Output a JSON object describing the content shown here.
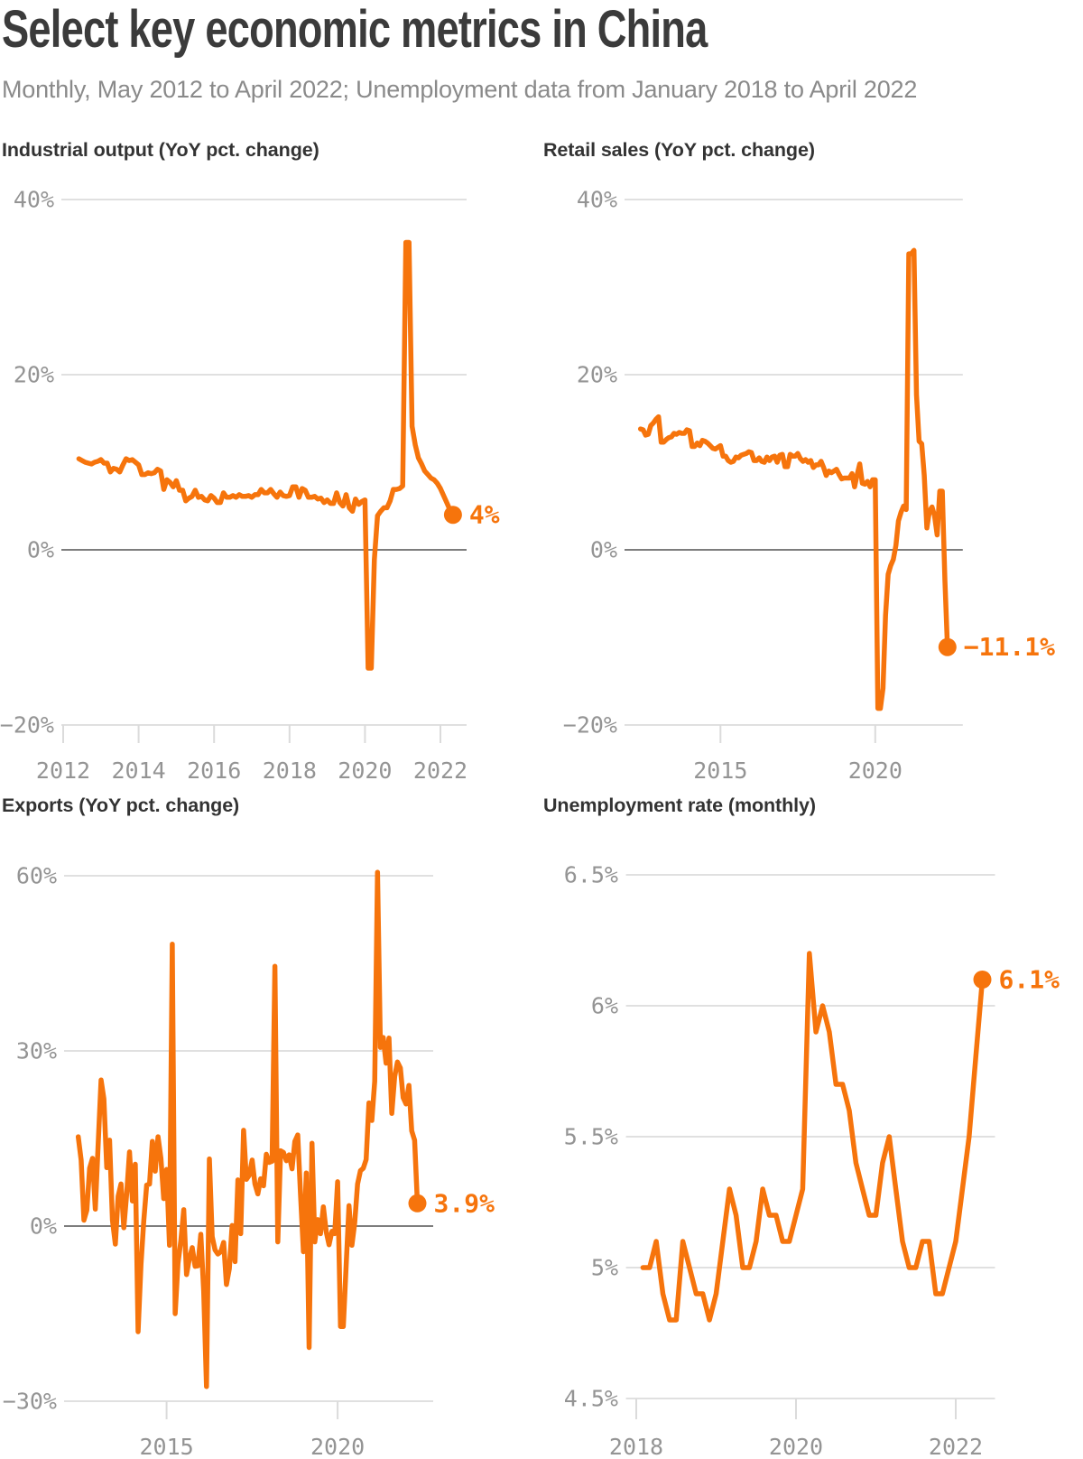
{
  "page": {
    "title": "Select key economic metrics in China",
    "subtitle": "Monthly, May 2012 to April 2022; Unemployment data from January 2018 to April 2022"
  },
  "colors": {
    "accent_orange": "#F6740C",
    "grid_line": "#E0E0E0",
    "zero_line": "#7D7D7D",
    "axis_tick_mark": "#DBDBDB",
    "tick_label": "#949494",
    "heading": "#3B3B3B",
    "subtitle_gray": "#8A8A8A",
    "chart_title_gray": "#333333",
    "background": "#FFFFFF"
  },
  "chart_data": [
    {
      "type": "line",
      "title": "Industrial output (YoY pct. change)",
      "unit": "percent",
      "start": {
        "year": 2012,
        "month": 5
      },
      "frequency": "monthly",
      "end_label": "4%",
      "y_axis": {
        "min": -20,
        "max": 40,
        "zero_line": true,
        "ticks": [
          {
            "value": 40,
            "label": "40%"
          },
          {
            "value": 20,
            "label": "20%"
          },
          {
            "value": 0,
            "label": "0%"
          },
          {
            "value": -20,
            "label": "−20%"
          }
        ]
      },
      "x_axis": {
        "min": 2012,
        "max": 2022.7,
        "ticks": [
          {
            "value": 2012,
            "label": "2012"
          },
          {
            "value": 2014,
            "label": "2014"
          },
          {
            "value": 2016,
            "label": "2016"
          },
          {
            "value": 2018,
            "label": "2018"
          },
          {
            "value": 2020,
            "label": "2020"
          },
          {
            "value": 2022,
            "label": "2022"
          }
        ]
      },
      "values": [
        10.4,
        10.2,
        10.0,
        9.9,
        9.8,
        10.0,
        10.1,
        10.3,
        9.9,
        9.9,
        8.9,
        9.3,
        9.2,
        8.9,
        9.7,
        10.4,
        10.2,
        10.3,
        10.0,
        9.7,
        8.6,
        8.6,
        8.8,
        8.7,
        8.8,
        9.2,
        9.0,
        6.9,
        8.0,
        7.7,
        7.2,
        7.9,
        6.8,
        6.8,
        5.6,
        5.9,
        6.1,
        6.8,
        6.0,
        6.1,
        5.7,
        5.6,
        6.2,
        5.9,
        5.4,
        5.4,
        6.5,
        6.0,
        6.0,
        6.2,
        6.0,
        6.3,
        6.1,
        6.1,
        6.2,
        6.0,
        6.3,
        6.3,
        6.9,
        6.5,
        6.5,
        6.9,
        6.4,
        6.0,
        6.6,
        6.2,
        6.1,
        6.2,
        7.2,
        7.2,
        6.0,
        7.0,
        6.8,
        6.0,
        6.0,
        6.1,
        5.8,
        5.9,
        5.4,
        5.7,
        5.3,
        5.3,
        6.5,
        5.4,
        5.0,
        6.3,
        4.8,
        4.4,
        5.8,
        5.2,
        5.5,
        5.7,
        -13.5,
        -13.5,
        -1.1,
        3.9,
        4.4,
        4.8,
        4.8,
        5.6,
        6.9,
        6.9,
        7.0,
        7.3,
        35.1,
        35.1,
        14.1,
        12.0,
        10.5,
        9.8,
        9.0,
        8.6,
        8.2,
        8.0,
        7.6,
        7.0,
        6.2,
        5.4,
        4.6,
        4.0
      ]
    },
    {
      "type": "line",
      "title": "Retail sales (YoY pct. change)",
      "unit": "percent",
      "start": {
        "year": 2012,
        "month": 5
      },
      "frequency": "monthly",
      "end_label": "−11.1%",
      "y_axis": {
        "min": -20,
        "max": 40,
        "zero_line": true,
        "ticks": [
          {
            "value": 40,
            "label": "40%"
          },
          {
            "value": 20,
            "label": "20%"
          },
          {
            "value": 0,
            "label": "0%"
          },
          {
            "value": -20,
            "label": "−20%"
          }
        ]
      },
      "x_axis": {
        "min": 2012,
        "max": 2022.8,
        "ticks": [
          {
            "value": 2015,
            "label": "2015"
          },
          {
            "value": 2020,
            "label": "2020"
          }
        ]
      },
      "values": [
        13.8,
        13.7,
        13.1,
        13.2,
        14.2,
        14.5,
        14.9,
        15.2,
        12.3,
        12.3,
        12.6,
        12.8,
        12.9,
        13.3,
        13.2,
        13.4,
        13.3,
        13.3,
        13.7,
        13.6,
        11.8,
        11.8,
        12.2,
        11.9,
        12.5,
        12.4,
        12.2,
        11.9,
        11.6,
        11.5,
        11.7,
        11.9,
        10.7,
        10.7,
        10.2,
        10.0,
        10.1,
        10.6,
        10.5,
        10.8,
        10.9,
        11.0,
        11.2,
        11.1,
        10.2,
        10.2,
        10.5,
        10.1,
        10.0,
        10.6,
        10.2,
        10.6,
        10.7,
        10.0,
        10.8,
        10.9,
        9.5,
        9.5,
        10.9,
        10.7,
        10.7,
        11.0,
        10.4,
        10.1,
        10.3,
        10.0,
        10.2,
        9.4,
        9.7,
        9.7,
        10.1,
        9.4,
        8.5,
        9.0,
        8.8,
        9.0,
        9.2,
        8.6,
        8.1,
        8.2,
        8.2,
        8.2,
        8.7,
        7.2,
        8.6,
        9.8,
        7.6,
        7.5,
        7.8,
        7.2,
        8.0,
        8.0,
        -18.1,
        -18.1,
        -15.8,
        -7.5,
        -2.8,
        -1.8,
        -1.1,
        0.5,
        3.3,
        4.3,
        5.0,
        4.6,
        33.8,
        33.8,
        34.2,
        17.7,
        12.4,
        12.1,
        8.5,
        2.5,
        4.4,
        4.9,
        3.9,
        1.7,
        6.7,
        6.7,
        -3.5,
        -11.1
      ]
    },
    {
      "type": "line",
      "title": "Exports (YoY pct. change)",
      "unit": "percent",
      "start": {
        "year": 2012,
        "month": 5
      },
      "frequency": "monthly",
      "end_label": "3.9%",
      "y_axis": {
        "min": -30,
        "max": 60,
        "zero_line": true,
        "ticks": [
          {
            "value": 60,
            "label": "60%"
          },
          {
            "value": 30,
            "label": "30%"
          },
          {
            "value": 0,
            "label": "0%"
          },
          {
            "value": -30,
            "label": "−30%"
          }
        ]
      },
      "x_axis": {
        "min": 2012,
        "max": 2022.8,
        "ticks": [
          {
            "value": 2015,
            "label": "2015"
          },
          {
            "value": 2020,
            "label": "2020"
          }
        ]
      },
      "values": [
        15.3,
        11.3,
        1.0,
        2.7,
        9.9,
        11.6,
        2.9,
        14.1,
        25.0,
        21.8,
        10.0,
        14.7,
        1.0,
        -3.1,
        5.1,
        7.2,
        -0.3,
        5.6,
        12.7,
        4.3,
        10.6,
        -18.1,
        -6.6,
        0.9,
        7.0,
        7.2,
        14.5,
        9.4,
        15.3,
        11.6,
        4.7,
        9.7,
        -3.3,
        48.3,
        -15.0,
        -6.4,
        -2.5,
        2.8,
        -8.3,
        -5.5,
        -3.7,
        -6.9,
        -6.8,
        -1.4,
        -11.2,
        -27.5,
        11.5,
        -1.8,
        -4.1,
        -4.8,
        -4.4,
        -2.8,
        -10.0,
        -7.3,
        0.1,
        -6.1,
        7.9,
        -1.3,
        16.4,
        8.0,
        8.7,
        11.3,
        7.2,
        5.5,
        8.1,
        6.9,
        12.3,
        10.9,
        11.1,
        44.5,
        -2.7,
        12.9,
        12.6,
        11.2,
        12.2,
        9.8,
        14.5,
        15.6,
        5.4,
        -4.4,
        9.1,
        -20.8,
        14.2,
        -2.7,
        1.1,
        -1.3,
        3.3,
        -1.0,
        -3.2,
        -0.9,
        -1.3,
        7.6,
        -17.2,
        -17.2,
        -6.6,
        3.5,
        -3.3,
        0.5,
        7.2,
        9.5,
        9.9,
        11.4,
        21.1,
        18.1,
        24.8,
        60.6,
        30.6,
        32.3,
        27.9,
        32.2,
        19.3,
        25.6,
        28.1,
        27.1,
        22.0,
        20.9,
        24.1,
        16.3,
        14.7,
        3.9
      ]
    },
    {
      "type": "line",
      "title": "Unemployment rate (monthly)",
      "unit": "percent",
      "start": {
        "year": 2018,
        "month": 1
      },
      "frequency": "monthly",
      "end_label": "6.1%",
      "y_axis": {
        "min": 4.5,
        "max": 6.5,
        "zero_line": false,
        "ticks": [
          {
            "value": 6.5,
            "label": "6.5%"
          },
          {
            "value": 6,
            "label": "6%"
          },
          {
            "value": 5.5,
            "label": "5.5%"
          },
          {
            "value": 5,
            "label": "5%"
          },
          {
            "value": 4.5,
            "label": "4.5%"
          }
        ]
      },
      "x_axis": {
        "min": 2017.9,
        "max": 2022.5,
        "ticks": [
          {
            "value": 2018,
            "label": "2018"
          },
          {
            "value": 2020,
            "label": "2020"
          },
          {
            "value": 2022,
            "label": "2022"
          }
        ]
      },
      "values": [
        5.0,
        5.0,
        5.1,
        4.9,
        4.8,
        4.8,
        5.1,
        5.0,
        4.9,
        4.9,
        4.8,
        4.9,
        5.1,
        5.3,
        5.2,
        5.0,
        5.0,
        5.1,
        5.3,
        5.2,
        5.2,
        5.1,
        5.1,
        5.2,
        5.3,
        6.2,
        5.9,
        6.0,
        5.9,
        5.7,
        5.7,
        5.6,
        5.4,
        5.3,
        5.2,
        5.2,
        5.4,
        5.5,
        5.3,
        5.1,
        5.0,
        5.0,
        5.1,
        5.1,
        4.9,
        4.9,
        5.0,
        5.1,
        5.3,
        5.5,
        5.8,
        6.1
      ]
    }
  ]
}
